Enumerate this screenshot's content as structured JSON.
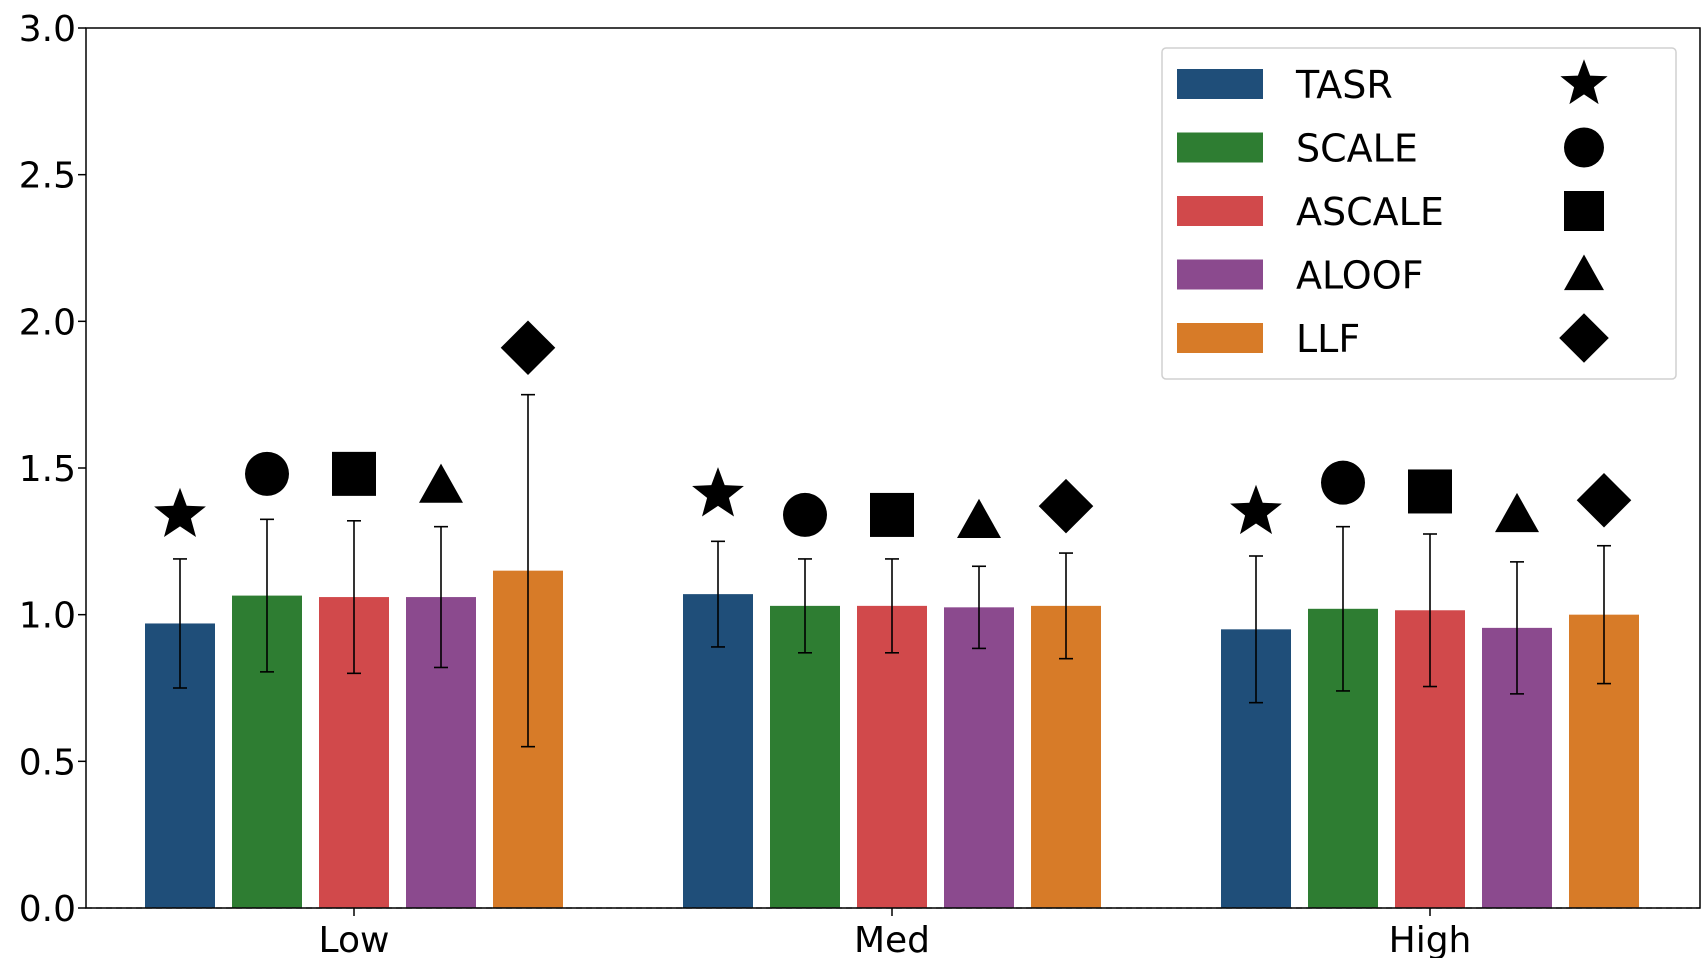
{
  "chart_data": {
    "type": "bar",
    "title": "",
    "xlabel": "",
    "ylabel": "",
    "categories": [
      "Low",
      "Med",
      "High"
    ],
    "ylim": [
      0,
      3.0
    ],
    "yticks": [
      "0.0",
      "0.5",
      "1.0",
      "1.5",
      "2.0",
      "2.5",
      "3.0"
    ],
    "baseline": 0,
    "grid": false,
    "legend_position": "top-right",
    "series": [
      {
        "name": "TASR",
        "color": "#1f4e79",
        "marker": "star",
        "values": [
          0.97,
          1.07,
          0.95
        ],
        "err": [
          0.22,
          0.18,
          0.25
        ],
        "marker_values": [
          1.34,
          1.41,
          1.35
        ]
      },
      {
        "name": "SCALE",
        "color": "#2e7d32",
        "marker": "circle",
        "values": [
          1.065,
          1.03,
          1.02
        ],
        "err": [
          0.26,
          0.16,
          0.28
        ],
        "marker_values": [
          1.48,
          1.34,
          1.45
        ]
      },
      {
        "name": "ASCALE",
        "color": "#d1494b",
        "marker": "square",
        "values": [
          1.06,
          1.03,
          1.015
        ],
        "err": [
          0.26,
          0.16,
          0.26
        ],
        "marker_values": [
          1.48,
          1.34,
          1.42
        ]
      },
      {
        "name": "ALOOF",
        "color": "#8b4a8e",
        "marker": "triangle",
        "values": [
          1.06,
          1.025,
          0.955
        ],
        "err": [
          0.24,
          0.14,
          0.225
        ],
        "marker_values": [
          1.44,
          1.32,
          1.34
        ]
      },
      {
        "name": "LLF",
        "color": "#d77b28",
        "marker": "diamond",
        "values": [
          1.15,
          1.03,
          1.0
        ],
        "err": [
          0.6,
          0.18,
          0.235
        ],
        "marker_values": [
          1.91,
          1.37,
          1.39
        ]
      }
    ]
  }
}
